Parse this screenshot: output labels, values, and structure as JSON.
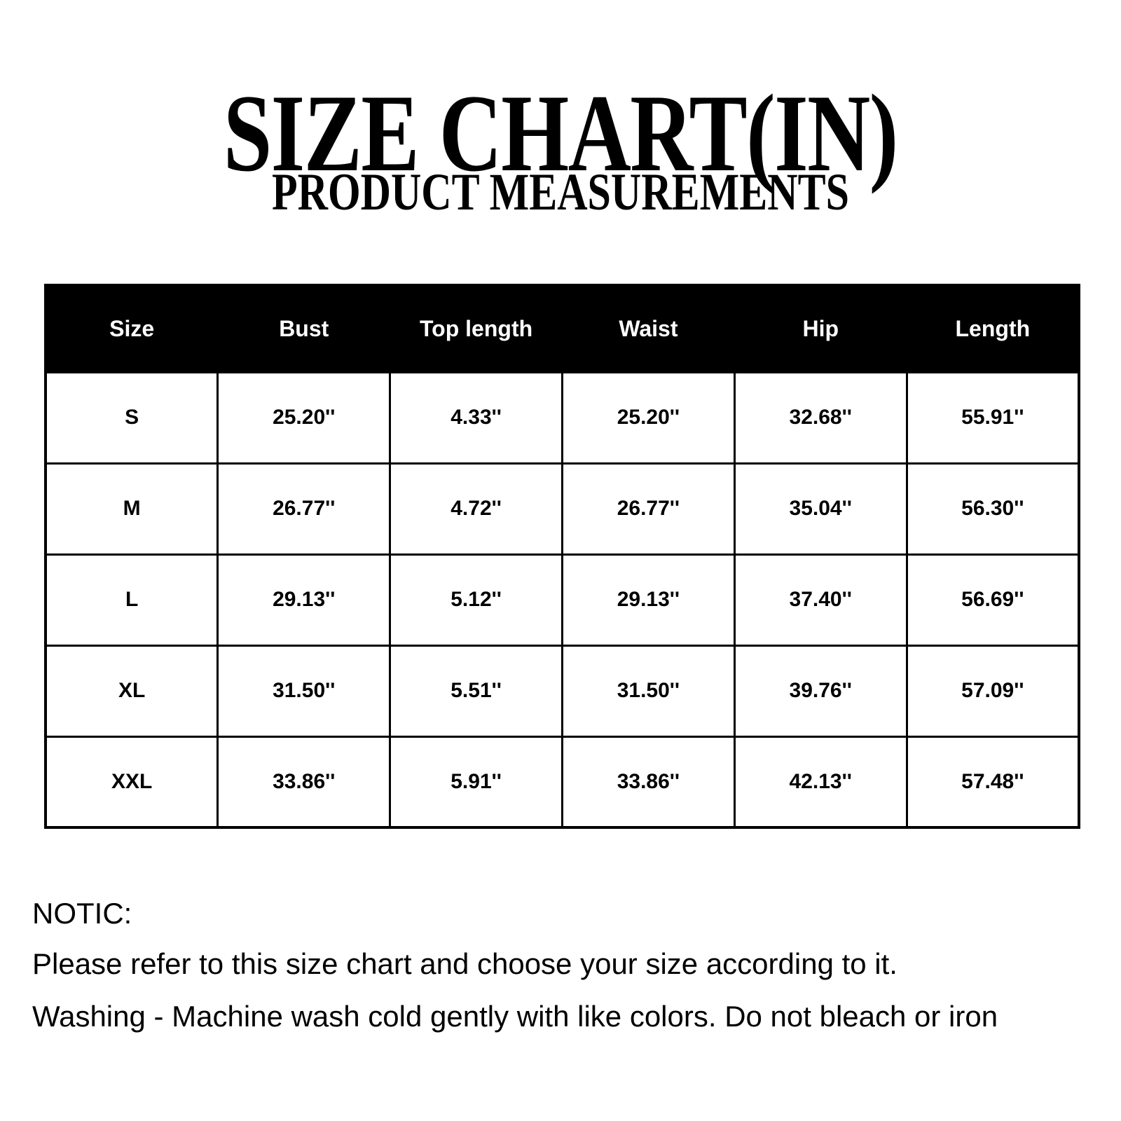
{
  "colors": {
    "background": "#ffffff",
    "text": "#000000",
    "table_header_bg": "#000000",
    "table_header_text": "#ffffff",
    "table_border": "#000000"
  },
  "chart_data": {
    "type": "table",
    "title": "SIZE CHART(IN)",
    "subtitle": "PRODUCT MEASUREMENTS",
    "columns": [
      "Size",
      "Bust",
      "Top length",
      "Waist",
      "Hip",
      "Length"
    ],
    "rows": [
      [
        "S",
        "25.20''",
        "4.33''",
        "25.20''",
        "32.68''",
        "55.91''"
      ],
      [
        "M",
        "26.77''",
        "4.72''",
        "26.77''",
        "35.04''",
        "56.30''"
      ],
      [
        "L",
        "29.13''",
        "5.12''",
        "29.13''",
        "37.40''",
        "56.69''"
      ],
      [
        "XL",
        "31.50''",
        "5.51''",
        "31.50''",
        "39.76''",
        "57.09''"
      ],
      [
        "XXL",
        "33.86''",
        "5.91''",
        "33.86''",
        "42.13''",
        "57.48''"
      ]
    ]
  },
  "notice": {
    "heading": "NOTIC:",
    "lines": [
      "Please refer to this size chart and choose your size according to it.",
      "Washing - Machine wash cold gently with like colors. Do not bleach or iron"
    ]
  }
}
